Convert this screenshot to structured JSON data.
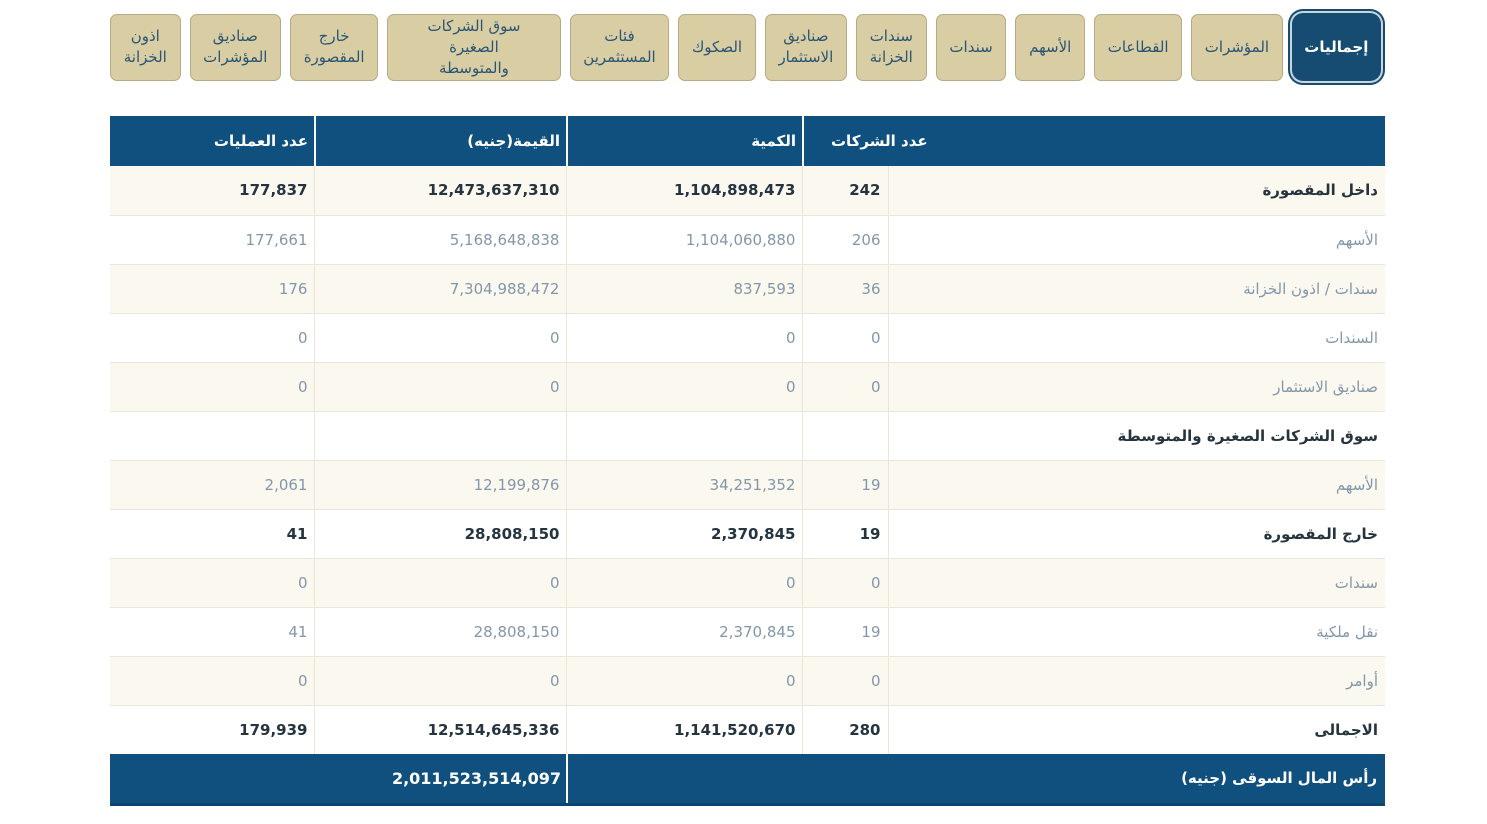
{
  "colors": {
    "navy_header": "#10507F",
    "navy_selected_tab": "#164B72",
    "tab_beige": "#D9CDA4",
    "tab_border": "#B5AA85",
    "row_cream": "#FBF8F0",
    "row_white": "#FFFFFF",
    "grid_line": "#EAE6DA",
    "text_dark": "#25343F",
    "text_light": "#8297A9",
    "tab_text": "#2A5574"
  },
  "tabs": [
    {
      "id": "totals",
      "label": "إجماليات",
      "selected": true
    },
    {
      "id": "indices",
      "label": "المؤشرات",
      "selected": false
    },
    {
      "id": "sectors",
      "label": "القطاعات",
      "selected": false
    },
    {
      "id": "stocks",
      "label": "الأسهم",
      "selected": false
    },
    {
      "id": "bonds",
      "label": "سندات",
      "selected": false
    },
    {
      "id": "treasury-bonds",
      "label": "سندات\nالخزانة",
      "selected": false
    },
    {
      "id": "investment-funds",
      "label": "صناديق\nالاستثمار",
      "selected": false
    },
    {
      "id": "sukuk",
      "label": "الصكوك",
      "selected": false
    },
    {
      "id": "investor-types",
      "label": "فئات\nالمستثمرين",
      "selected": false
    },
    {
      "id": "sme-market",
      "label": "سوق الشركات الصغيرة\nوالمتوسطة",
      "selected": false
    },
    {
      "id": "otc",
      "label": "خارج\nالمقصورة",
      "selected": false
    },
    {
      "id": "index-funds",
      "label": "صناديق\nالمؤشرات",
      "selected": false
    },
    {
      "id": "treasury-bills",
      "label": "اذون\nالخزانة",
      "selected": false
    }
  ],
  "table": {
    "headers": {
      "companies": "عدد الشركات",
      "quantity": "الكمية",
      "value": "القيمة(جنيه)",
      "operations": "عدد العمليات"
    },
    "rows": [
      {
        "label": "داخل المقصورة",
        "bold": true,
        "companies": "242",
        "quantity": "1,104,898,473",
        "value": "12,473,637,310",
        "operations": "177,837"
      },
      {
        "label": "الأسهم",
        "bold": false,
        "companies": "206",
        "quantity": "1,104,060,880",
        "value": "5,168,648,838",
        "operations": "177,661"
      },
      {
        "label": "سندات / اذون الخزانة",
        "bold": false,
        "companies": "36",
        "quantity": "837,593",
        "value": "7,304,988,472",
        "operations": "176"
      },
      {
        "label": "السندات",
        "bold": false,
        "companies": "0",
        "quantity": "0",
        "value": "0",
        "operations": "0"
      },
      {
        "label": "صناديق الاستثمار",
        "bold": false,
        "companies": "0",
        "quantity": "0",
        "value": "0",
        "operations": "0"
      },
      {
        "label": "سوق الشركات الصغيرة والمتوسطة",
        "bold": true,
        "companies": "",
        "quantity": "",
        "value": "",
        "operations": ""
      },
      {
        "label": "الأسهم",
        "bold": false,
        "companies": "19",
        "quantity": "34,251,352",
        "value": "12,199,876",
        "operations": "2,061"
      },
      {
        "label": "خارج المقصورة",
        "bold": true,
        "companies": "19",
        "quantity": "2,370,845",
        "value": "28,808,150",
        "operations": "41"
      },
      {
        "label": "سندات",
        "bold": false,
        "companies": "0",
        "quantity": "0",
        "value": "0",
        "operations": "0"
      },
      {
        "label": "نقل ملكية",
        "bold": false,
        "companies": "19",
        "quantity": "2,370,845",
        "value": "28,808,150",
        "operations": "41"
      },
      {
        "label": "أوامر",
        "bold": false,
        "companies": "0",
        "quantity": "0",
        "value": "0",
        "operations": "0"
      },
      {
        "label": "الاجمالى",
        "bold": true,
        "companies": "280",
        "quantity": "1,141,520,670",
        "value": "12,514,645,336",
        "operations": "179,939"
      }
    ],
    "footer": {
      "label": "رأس المال السوقى (جنيه)",
      "value": "2,011,523,514,097"
    }
  }
}
